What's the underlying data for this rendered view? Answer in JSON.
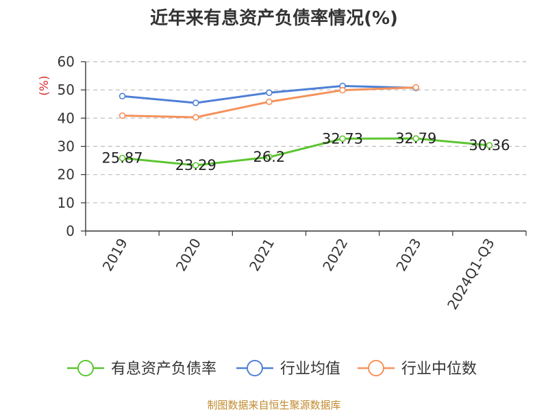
{
  "chart_data": {
    "type": "line",
    "title": "近年来有息资产负债率情况(%)",
    "ylabel": "(%)",
    "xlabel": "",
    "ylim": [
      0,
      60
    ],
    "yticks": [
      0,
      10,
      20,
      30,
      40,
      50,
      60
    ],
    "grid": true,
    "legend_position": "bottom",
    "categories": [
      "2019",
      "2020",
      "2021",
      "2022",
      "2023",
      "2024Q1-Q3"
    ],
    "series": [
      {
        "name": "有息资产负债率",
        "color": "#5cc530",
        "values": [
          25.87,
          23.29,
          26.2,
          32.73,
          32.79,
          30.36
        ],
        "labels": [
          "25.87",
          "23.29",
          "26.2",
          "32.73",
          "32.79",
          "30.36"
        ]
      },
      {
        "name": "行业均值",
        "color": "#4e7fd6",
        "values": [
          47.8,
          45.4,
          49.0,
          51.4,
          50.7,
          null
        ]
      },
      {
        "name": "行业中位数",
        "color": "#f5915a",
        "values": [
          40.9,
          40.3,
          45.8,
          49.9,
          50.9,
          null
        ]
      }
    ]
  },
  "footer": "制图数据来自恒生聚源数据库"
}
